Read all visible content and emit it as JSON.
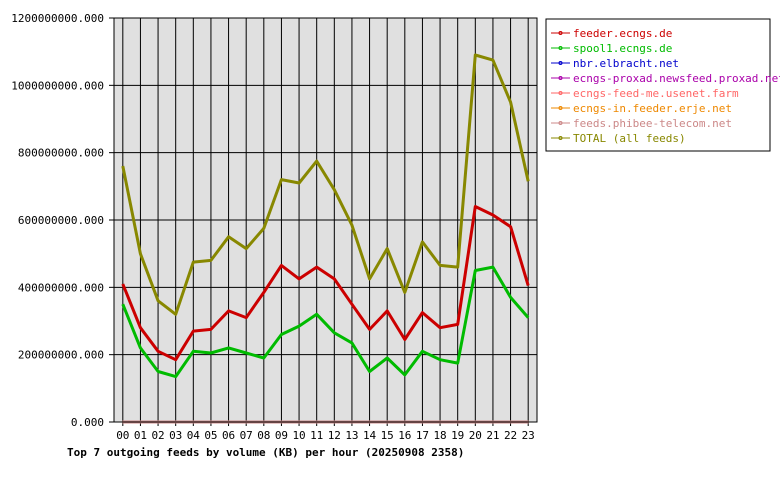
{
  "chart_data": {
    "type": "line",
    "title": "Top 7 outgoing feeds by volume (KB) per hour (20250908 2358)",
    "xlabel": "",
    "ylabel": "",
    "x": [
      "00",
      "01",
      "02",
      "03",
      "04",
      "05",
      "06",
      "07",
      "08",
      "09",
      "10",
      "11",
      "12",
      "13",
      "14",
      "15",
      "16",
      "17",
      "18",
      "19",
      "20",
      "21",
      "22",
      "23"
    ],
    "y_ticks": [
      "0.000",
      "200000000.000",
      "400000000.000",
      "600000000.000",
      "800000000.000",
      "1000000000.000",
      "1200000000.000"
    ],
    "ylim": [
      0,
      1200000000
    ],
    "grid": true,
    "legend_position": "right",
    "series": [
      {
        "name": "feeder.ecngs.de",
        "color": "#cc0000",
        "values": [
          410000000,
          280000000,
          210000000,
          185000000,
          270000000,
          275000000,
          330000000,
          310000000,
          385000000,
          465000000,
          425000000,
          460000000,
          425000000,
          350000000,
          275000000,
          330000000,
          245000000,
          325000000,
          280000000,
          290000000,
          640000000,
          615000000,
          580000000,
          405000000
        ]
      },
      {
        "name": "spool1.ecngs.de",
        "color": "#00bb00",
        "values": [
          350000000,
          220000000,
          150000000,
          135000000,
          210000000,
          205000000,
          220000000,
          205000000,
          190000000,
          260000000,
          285000000,
          320000000,
          265000000,
          235000000,
          150000000,
          190000000,
          140000000,
          210000000,
          185000000,
          175000000,
          450000000,
          460000000,
          370000000,
          310000000
        ]
      },
      {
        "name": "nbr.elbracht.net",
        "color": "#0000cc",
        "values": [
          0,
          0,
          0,
          0,
          0,
          0,
          0,
          0,
          0,
          0,
          0,
          0,
          0,
          0,
          0,
          0,
          0,
          0,
          0,
          0,
          0,
          0,
          0,
          0
        ]
      },
      {
        "name": "ecngs-proxad.newsfeed.proxad.net",
        "color": "#aa00aa",
        "values": [
          0,
          0,
          0,
          0,
          0,
          0,
          0,
          0,
          0,
          0,
          0,
          0,
          0,
          0,
          0,
          0,
          0,
          0,
          0,
          0,
          0,
          0,
          0,
          0
        ]
      },
      {
        "name": "ecngs-feed-me.usenet.farm",
        "color": "#ff6666",
        "values": [
          0,
          0,
          0,
          0,
          0,
          0,
          0,
          0,
          0,
          0,
          0,
          0,
          0,
          0,
          0,
          0,
          0,
          0,
          0,
          0,
          0,
          0,
          0,
          0
        ]
      },
      {
        "name": "ecngs-in.feeder.erje.net",
        "color": "#ee8800",
        "values": [
          0,
          0,
          0,
          0,
          0,
          0,
          0,
          0,
          0,
          0,
          0,
          0,
          0,
          0,
          0,
          0,
          0,
          0,
          0,
          0,
          0,
          0,
          0,
          0
        ]
      },
      {
        "name": "feeds.phibee-telecom.net",
        "color": "#cc8888",
        "values": [
          0,
          0,
          0,
          0,
          0,
          0,
          0,
          0,
          0,
          0,
          0,
          0,
          0,
          0,
          0,
          0,
          0,
          0,
          0,
          0,
          0,
          0,
          0,
          0
        ]
      },
      {
        "name": "TOTAL (all feeds)",
        "color": "#888800",
        "values": [
          760000000,
          500000000,
          360000000,
          320000000,
          475000000,
          480000000,
          550000000,
          515000000,
          575000000,
          720000000,
          710000000,
          775000000,
          690000000,
          585000000,
          425000000,
          515000000,
          385000000,
          535000000,
          465000000,
          460000000,
          1090000000,
          1075000000,
          950000000,
          715000000
        ]
      }
    ]
  }
}
